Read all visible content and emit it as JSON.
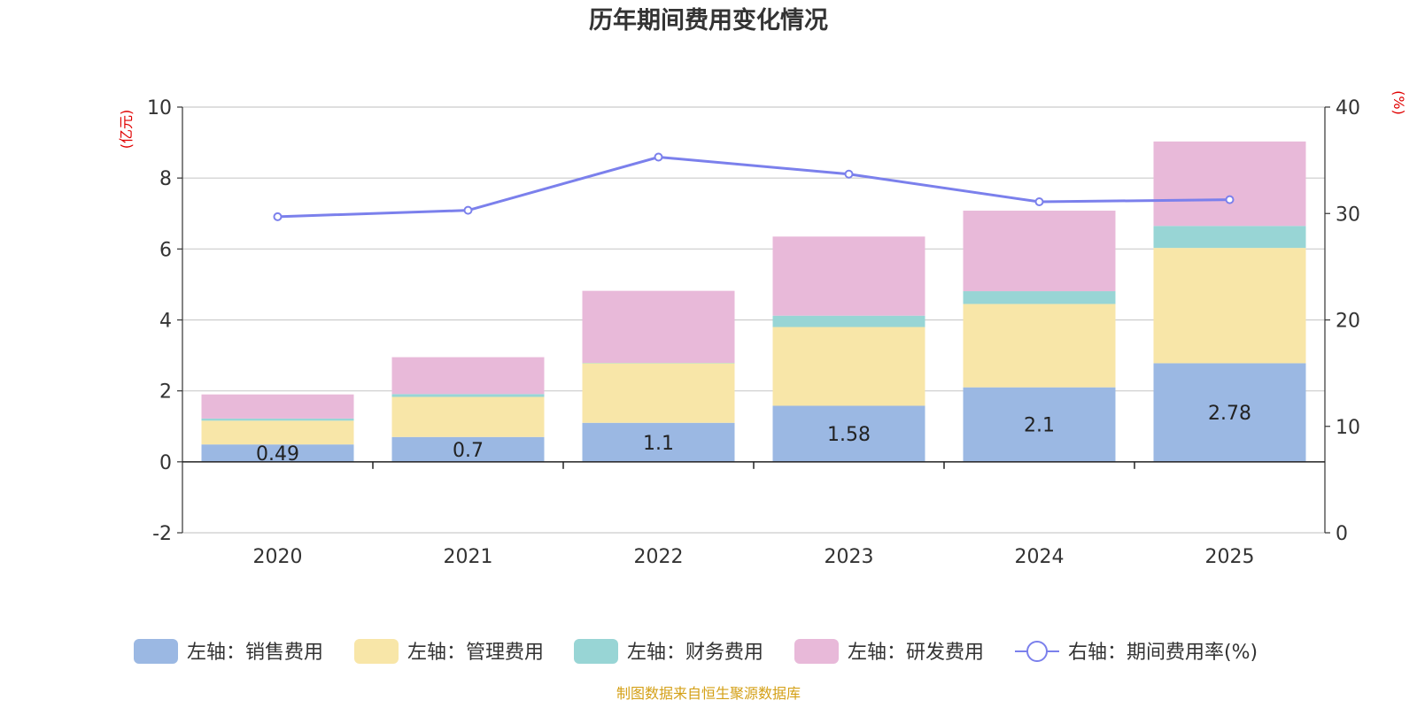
{
  "chart_data": {
    "type": "bar",
    "title": "历年期间费用变化情况",
    "categories": [
      "2020",
      "2021",
      "2022",
      "2023",
      "2024",
      "2025"
    ],
    "y_left": {
      "unit_label": "(亿元)",
      "ticks": [
        "-2",
        "0",
        "2",
        "4",
        "6",
        "8",
        "10"
      ],
      "range": [
        -2,
        10
      ]
    },
    "y_right": {
      "unit_label": "(%)",
      "ticks": [
        "0",
        "10",
        "20",
        "30",
        "40"
      ],
      "range": [
        0,
        40
      ]
    },
    "series": [
      {
        "name": "左轴：销售费用",
        "color": "#9bb8e3",
        "values": [
          0.49,
          0.7,
          1.1,
          1.58,
          2.1,
          2.78
        ],
        "labels": [
          "0.49",
          "0.7",
          "1.1",
          "1.58",
          "2.1",
          "2.78"
        ]
      },
      {
        "name": "左轴：管理费用",
        "color": "#f8e6a8",
        "values": [
          0.67,
          1.13,
          1.68,
          2.22,
          2.35,
          3.25
        ]
      },
      {
        "name": "左轴：财务费用",
        "color": "#98d5d5",
        "values": [
          0.06,
          0.08,
          0.01,
          0.32,
          0.36,
          0.62
        ]
      },
      {
        "name": "左轴：研发费用",
        "color": "#e8b9d9",
        "values": [
          0.68,
          1.04,
          2.03,
          2.23,
          2.27,
          2.38
        ]
      }
    ],
    "line": {
      "name": "右轴：期间费用率(%)",
      "color": "#7b80ec",
      "values": [
        29.7,
        30.3,
        35.3,
        33.7,
        31.1,
        31.3
      ]
    },
    "source": "制图数据来自恒生聚源数据库"
  }
}
